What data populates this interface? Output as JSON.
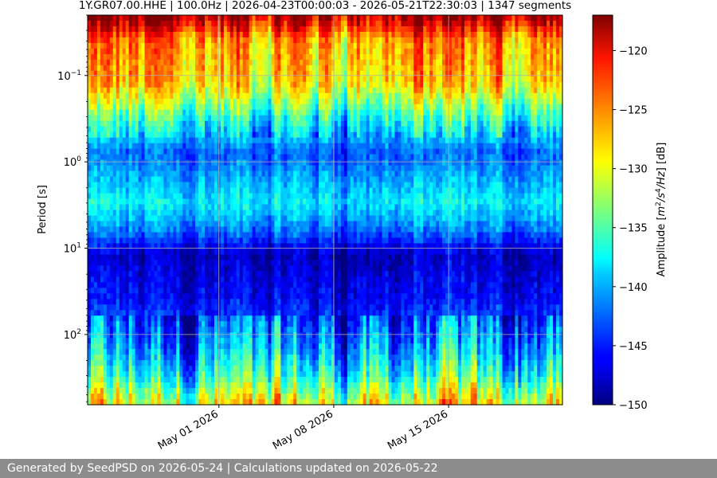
{
  "chart_data": {
    "type": "heatmap",
    "title": "1Y.GR07.00.HHE | 100.0Hz | 2026-04-23T00:00:03 - 2026-05-21T22:30:03 | 1347 segments",
    "xlabel": "",
    "ylabel": "Period [s]",
    "x_range": [
      "2026-04-23T00:00:03",
      "2026-05-21T22:30:03"
    ],
    "x_ticks": [
      {
        "date": "2026-05-01",
        "label": "May 01 2026"
      },
      {
        "date": "2026-05-08",
        "label": "May 08 2026"
      },
      {
        "date": "2026-05-15",
        "label": "May 15 2026"
      }
    ],
    "y_scale": "log",
    "y_inverted": true,
    "y_range": [
      0.02,
      650
    ],
    "y_ticks": [
      {
        "value": 0.1,
        "base": "10",
        "exp": "−1"
      },
      {
        "value": 1,
        "base": "10",
        "exp": "0"
      },
      {
        "value": 10,
        "base": "10",
        "exp": "1"
      },
      {
        "value": 100,
        "base": "10",
        "exp": "2"
      }
    ],
    "grid": true,
    "colormap": "jet",
    "colorbar": {
      "label_prefix": "Amplitude [",
      "label_suffix": "] [dB]",
      "unit_m": "m",
      "unit_m_exp": "2",
      "unit_s": "/s",
      "unit_s_exp": "4",
      "unit_hz": "/Hz",
      "range": [
        -150,
        -117
      ],
      "ticks": [
        -120,
        -125,
        -130,
        -135,
        -140,
        -145,
        -150
      ],
      "tick_labels": [
        "−120",
        "−125",
        "−130",
        "−135",
        "−140",
        "−145",
        "−150"
      ]
    },
    "amplitude_profile_by_period": [
      {
        "period": 0.02,
        "db": -118
      },
      {
        "period": 0.04,
        "db": -126
      },
      {
        "period": 0.12,
        "db": -128
      },
      {
        "period": 0.3,
        "db": -136
      },
      {
        "period": 0.8,
        "db": -143
      },
      {
        "period": 3,
        "db": -138
      },
      {
        "period": 6,
        "db": -142
      },
      {
        "period": 12,
        "db": -148
      },
      {
        "period": 40,
        "db": -146
      },
      {
        "period": 150,
        "db": -141
      },
      {
        "period": 300,
        "db": -137
      },
      {
        "period": 650,
        "db": -130
      }
    ]
  },
  "footer": {
    "text": "Generated by SeedPSD on 2026-05-24 | Calculations updated on 2026-05-22"
  }
}
